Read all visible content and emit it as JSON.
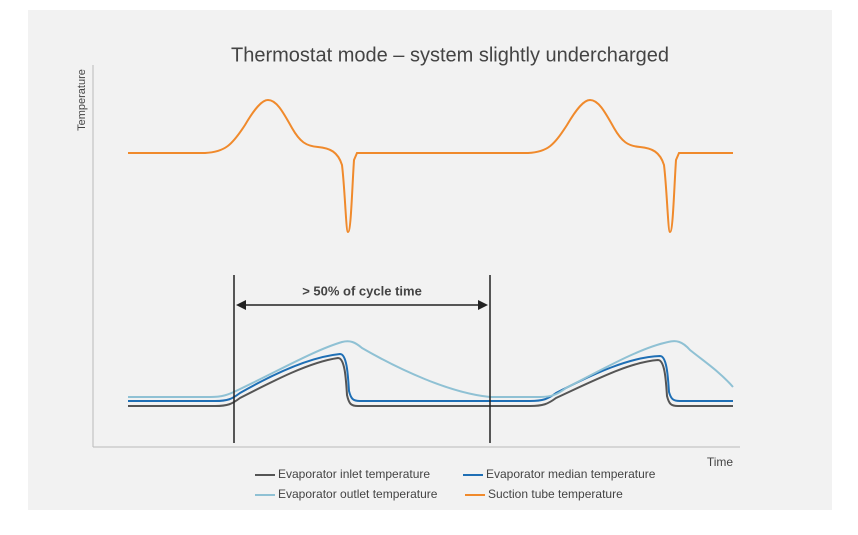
{
  "chart_data": {
    "type": "line",
    "title": "Thermostat mode – system slightly undercharged",
    "ylabel": "Temperature",
    "xlabel": "Time",
    "annotation": "> 50% of cycle time",
    "series": [
      {
        "name": "Evaporator inlet temperature",
        "color": "#555555"
      },
      {
        "name": "Evaporator median temperature",
        "color": "#1f6fb5"
      },
      {
        "name": "Evaporator outlet temperature",
        "color": "#8fc1d4"
      },
      {
        "name": "Suction tube temperature",
        "color": "#f08a2c"
      }
    ]
  }
}
